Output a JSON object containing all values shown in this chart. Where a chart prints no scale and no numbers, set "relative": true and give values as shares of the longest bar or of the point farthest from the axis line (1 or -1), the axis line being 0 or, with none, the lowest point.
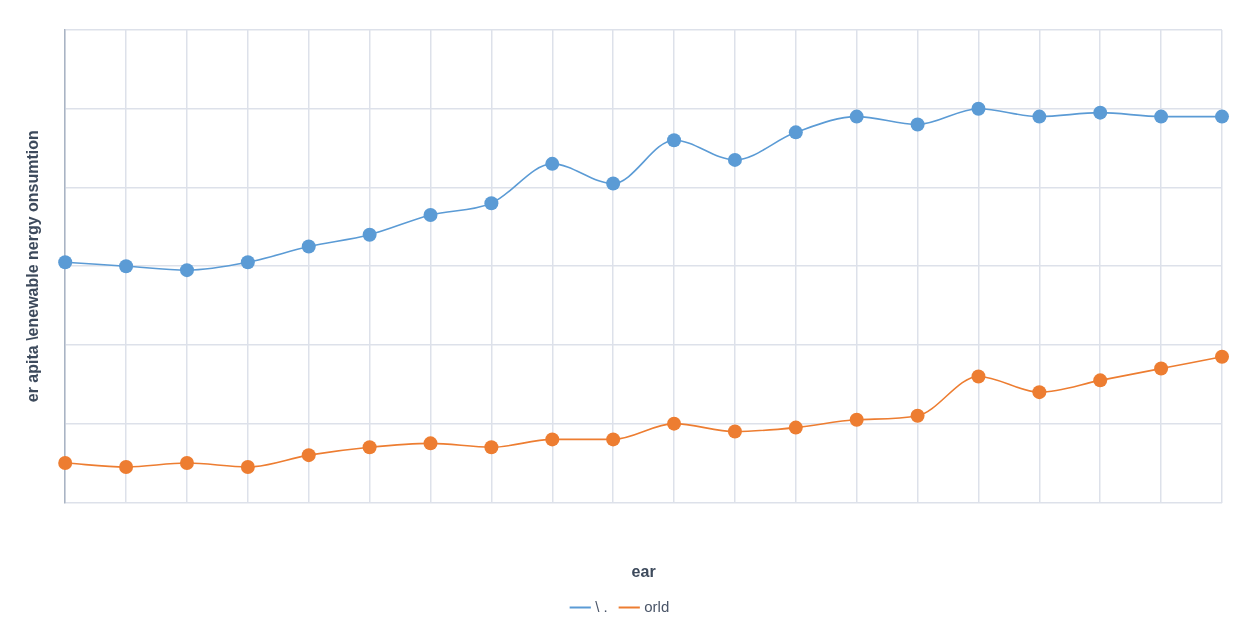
{
  "chart_data": {
    "type": "line",
    "xlabel": "ear",
    "ylabel": "er apita \\enewable nergy onsumtion",
    "categories": [
      null,
      null,
      null,
      null,
      null,
      null,
      null,
      null,
      null,
      null,
      null,
      null,
      null,
      null,
      null,
      null,
      null,
      null,
      null,
      null
    ],
    "relative": true,
    "grid": true,
    "legend": "bottom",
    "marker": "circle",
    "line_style": "solid",
    "series": [
      {
        "name": "\\ .",
        "color": "#5b9bd5",
        "values": [
          0.61,
          0.6,
          0.59,
          0.61,
          0.65,
          0.68,
          0.73,
          0.76,
          0.86,
          0.81,
          0.92,
          0.87,
          0.94,
          0.98,
          0.96,
          1,
          0.98,
          0.99,
          0.98,
          0.98
        ]
      },
      {
        "name": "orld",
        "color": "#ed7d31",
        "values": [
          0.1,
          0.09,
          0.1,
          0.09,
          0.12,
          0.14,
          0.15,
          0.14,
          0.16,
          0.16,
          0.2,
          0.18,
          0.19,
          0.21,
          0.22,
          0.32,
          0.28,
          0.31,
          0.34,
          0.37
        ]
      }
    ]
  }
}
